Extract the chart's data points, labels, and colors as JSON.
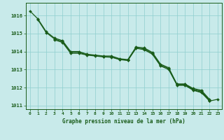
{
  "title": "Graphe pression niveau de la mer (hPa)",
  "background_color": "#c8eaea",
  "grid_color": "#8ecece",
  "line_color": "#1a5c1a",
  "text_color": "#1a5c1a",
  "xlim": [
    -0.5,
    23.5
  ],
  "ylim": [
    1010.8,
    1016.7
  ],
  "yticks": [
    1011,
    1012,
    1013,
    1014,
    1015,
    1016
  ],
  "xticks": [
    0,
    1,
    2,
    3,
    4,
    5,
    6,
    7,
    8,
    9,
    10,
    11,
    12,
    13,
    14,
    15,
    16,
    17,
    18,
    19,
    20,
    21,
    22,
    23
  ],
  "hours": [
    0,
    1,
    2,
    3,
    4,
    5,
    6,
    7,
    8,
    9,
    10,
    11,
    12,
    13,
    14,
    15,
    16,
    17,
    18,
    19,
    20,
    21,
    22,
    23
  ],
  "line1": [
    1016.25,
    1015.8,
    1015.1,
    1014.75,
    1014.6,
    1014.0,
    1014.0,
    1013.85,
    1013.8,
    1013.75,
    1013.75,
    1013.6,
    1013.55,
    1014.25,
    1014.2,
    1013.95,
    1013.3,
    1013.1,
    1012.2,
    1012.2,
    1011.95,
    1011.85,
    1011.35,
    null
  ],
  "line2": [
    null,
    1015.75,
    1015.05,
    1014.7,
    1014.55,
    1013.95,
    1013.95,
    1013.82,
    1013.78,
    1013.72,
    1013.7,
    1013.57,
    1013.52,
    1014.2,
    1014.15,
    1013.9,
    1013.25,
    1013.05,
    1012.18,
    1012.18,
    1011.9,
    1011.8,
    1011.3,
    null
  ],
  "line3": [
    null,
    null,
    null,
    1014.65,
    1014.5,
    1013.9,
    1013.9,
    1013.8,
    1013.75,
    1013.7,
    1013.68,
    1013.55,
    1013.5,
    1014.18,
    1014.1,
    1013.85,
    1013.2,
    1013.0,
    1012.15,
    1012.15,
    1011.88,
    1011.75,
    1011.28,
    null
  ],
  "line4": [
    null,
    null,
    null,
    null,
    null,
    null,
    null,
    null,
    null,
    null,
    null,
    null,
    null,
    null,
    null,
    null,
    null,
    null,
    1012.12,
    1012.12,
    1011.85,
    1011.72,
    1011.25,
    1011.35
  ]
}
